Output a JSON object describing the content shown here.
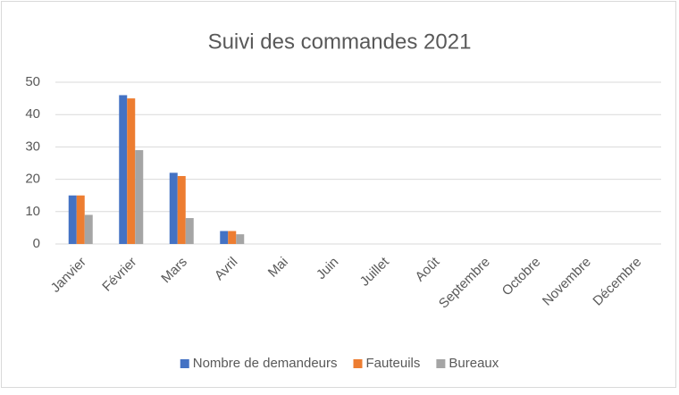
{
  "chart_data": {
    "type": "bar",
    "title": "Suivi des commandes 2021",
    "categories": [
      "Janvier",
      "Février",
      "Mars",
      "Avril",
      "Mai",
      "Juin",
      "Juillet",
      "Août",
      "Septembre",
      "Octobre",
      "Novembre",
      "Décembre"
    ],
    "series": [
      {
        "name": "Nombre de demandeurs",
        "color": "#4472c4",
        "values": [
          15,
          46,
          22,
          4,
          0,
          0,
          0,
          0,
          0,
          0,
          0,
          0
        ]
      },
      {
        "name": "Fauteuils",
        "color": "#ed7d31",
        "values": [
          15,
          45,
          21,
          4,
          0,
          0,
          0,
          0,
          0,
          0,
          0,
          0
        ]
      },
      {
        "name": "Bureaux",
        "color": "#a5a5a5",
        "values": [
          9,
          29,
          8,
          3,
          0,
          0,
          0,
          0,
          0,
          0,
          0,
          0
        ]
      }
    ],
    "ylim": [
      0,
      50
    ],
    "yticks": [
      0,
      10,
      20,
      30,
      40,
      50
    ],
    "grid": true,
    "legend": "bottom"
  }
}
